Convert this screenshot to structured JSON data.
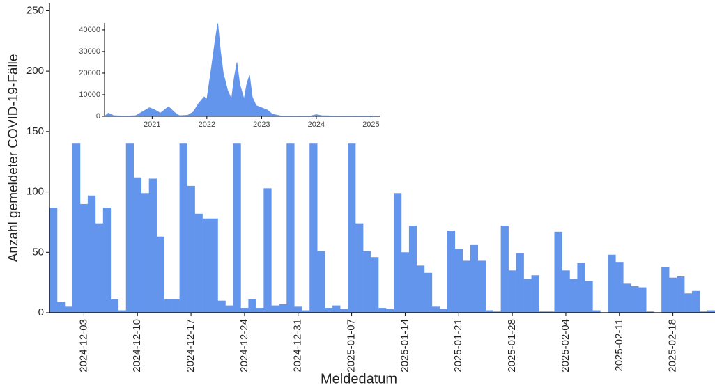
{
  "chart_data": [
    {
      "type": "bar",
      "color": "#6495ED",
      "xlabel": "Meldedatum",
      "ylabel": "Anzahl gemeldeter COVID-19-Fälle",
      "x": [
        "2024-11-29",
        "2024-11-30",
        "2024-12-01",
        "2024-12-02",
        "2024-12-03",
        "2024-12-04",
        "2024-12-05",
        "2024-12-06",
        "2024-12-07",
        "2024-12-08",
        "2024-12-09",
        "2024-12-10",
        "2024-12-11",
        "2024-12-12",
        "2024-12-13",
        "2024-12-14",
        "2024-12-15",
        "2024-12-16",
        "2024-12-17",
        "2024-12-18",
        "2024-12-19",
        "2024-12-20",
        "2024-12-21",
        "2024-12-22",
        "2024-12-23",
        "2024-12-24",
        "2024-12-25",
        "2024-12-26",
        "2024-12-27",
        "2024-12-28",
        "2024-12-29",
        "2024-12-30",
        "2024-12-31",
        "2025-01-01",
        "2025-01-02",
        "2025-01-03",
        "2025-01-04",
        "2025-01-05",
        "2025-01-06",
        "2025-01-07",
        "2025-01-08",
        "2025-01-09",
        "2025-01-10",
        "2025-01-11",
        "2025-01-12",
        "2025-01-13",
        "2025-01-14",
        "2025-01-15",
        "2025-01-16",
        "2025-01-17",
        "2025-01-18",
        "2025-01-19",
        "2025-01-20",
        "2025-01-21",
        "2025-01-22",
        "2025-01-23",
        "2025-01-24",
        "2025-01-25",
        "2025-01-26",
        "2025-01-27",
        "2025-01-28",
        "2025-01-29",
        "2025-01-30",
        "2025-01-31",
        "2025-02-01",
        "2025-02-02",
        "2025-02-03",
        "2025-02-04",
        "2025-02-05",
        "2025-02-06",
        "2025-02-07",
        "2025-02-08",
        "2025-02-09",
        "2025-02-10",
        "2025-02-11",
        "2025-02-12",
        "2025-02-13",
        "2025-02-14",
        "2025-02-15",
        "2025-02-16",
        "2025-02-17",
        "2025-02-18",
        "2025-02-19",
        "2025-02-20",
        "2025-02-21",
        "2025-02-22",
        "2025-02-23"
      ],
      "values": [
        87,
        9,
        5,
        140,
        90,
        97,
        74,
        87,
        11,
        2,
        140,
        112,
        99,
        111,
        63,
        11,
        11,
        140,
        105,
        82,
        78,
        78,
        10,
        6,
        140,
        4,
        11,
        4,
        103,
        6,
        7,
        140,
        5,
        2,
        140,
        51,
        4,
        6,
        3,
        140,
        74,
        51,
        46,
        4,
        3,
        99,
        50,
        72,
        39,
        33,
        5,
        3,
        68,
        53,
        43,
        56,
        43,
        2,
        1,
        72,
        35,
        49,
        28,
        31,
        1,
        1,
        67,
        35,
        28,
        41,
        26,
        2,
        0,
        48,
        42,
        24,
        22,
        21,
        1,
        0,
        38,
        29,
        30,
        16,
        18,
        1,
        2
      ],
      "xlim": [
        "2024-11-29",
        "2025-02-23"
      ],
      "xticks": [
        "2024-12-03",
        "2024-12-10",
        "2024-12-17",
        "2024-12-24",
        "2024-12-31",
        "2025-01-07",
        "2025-01-14",
        "2025-01-21",
        "2025-01-28",
        "2025-02-04",
        "2025-02-11",
        "2025-02-18"
      ],
      "ylim": [
        0,
        256
      ],
      "yticks": [
        0,
        50,
        100,
        150,
        200,
        250
      ]
    },
    {
      "type": "area",
      "color": "#6495ED",
      "x": [
        2020.13,
        2020.2,
        2020.3,
        2020.5,
        2020.7,
        2020.85,
        2020.95,
        2021.05,
        2021.15,
        2021.3,
        2021.4,
        2021.5,
        2021.65,
        2021.75,
        2021.85,
        2021.95,
        2022.0,
        2022.08,
        2022.15,
        2022.2,
        2022.25,
        2022.3,
        2022.38,
        2022.45,
        2022.5,
        2022.55,
        2022.6,
        2022.68,
        2022.73,
        2022.78,
        2022.83,
        2022.9,
        2023.0,
        2023.1,
        2023.2,
        2023.35,
        2023.6,
        2023.9,
        2024.0,
        2024.1,
        2024.4,
        2024.9,
        2025.1
      ],
      "values": [
        0,
        1500,
        300,
        100,
        300,
        2500,
        4000,
        3000,
        1500,
        4500,
        2000,
        300,
        500,
        2000,
        6000,
        9000,
        8000,
        22000,
        35000,
        43000,
        30000,
        20000,
        12000,
        8000,
        18000,
        25000,
        15000,
        8000,
        15000,
        19000,
        9000,
        5000,
        4000,
        3000,
        1000,
        200,
        100,
        200,
        800,
        300,
        100,
        200,
        100
      ],
      "xlim": [
        2020.13,
        2025.16
      ],
      "xticks": [
        2021,
        2022,
        2023,
        2024,
        2025
      ],
      "ylim": [
        0,
        43200
      ],
      "yticks": [
        0,
        10000,
        20000,
        30000,
        40000
      ]
    }
  ]
}
